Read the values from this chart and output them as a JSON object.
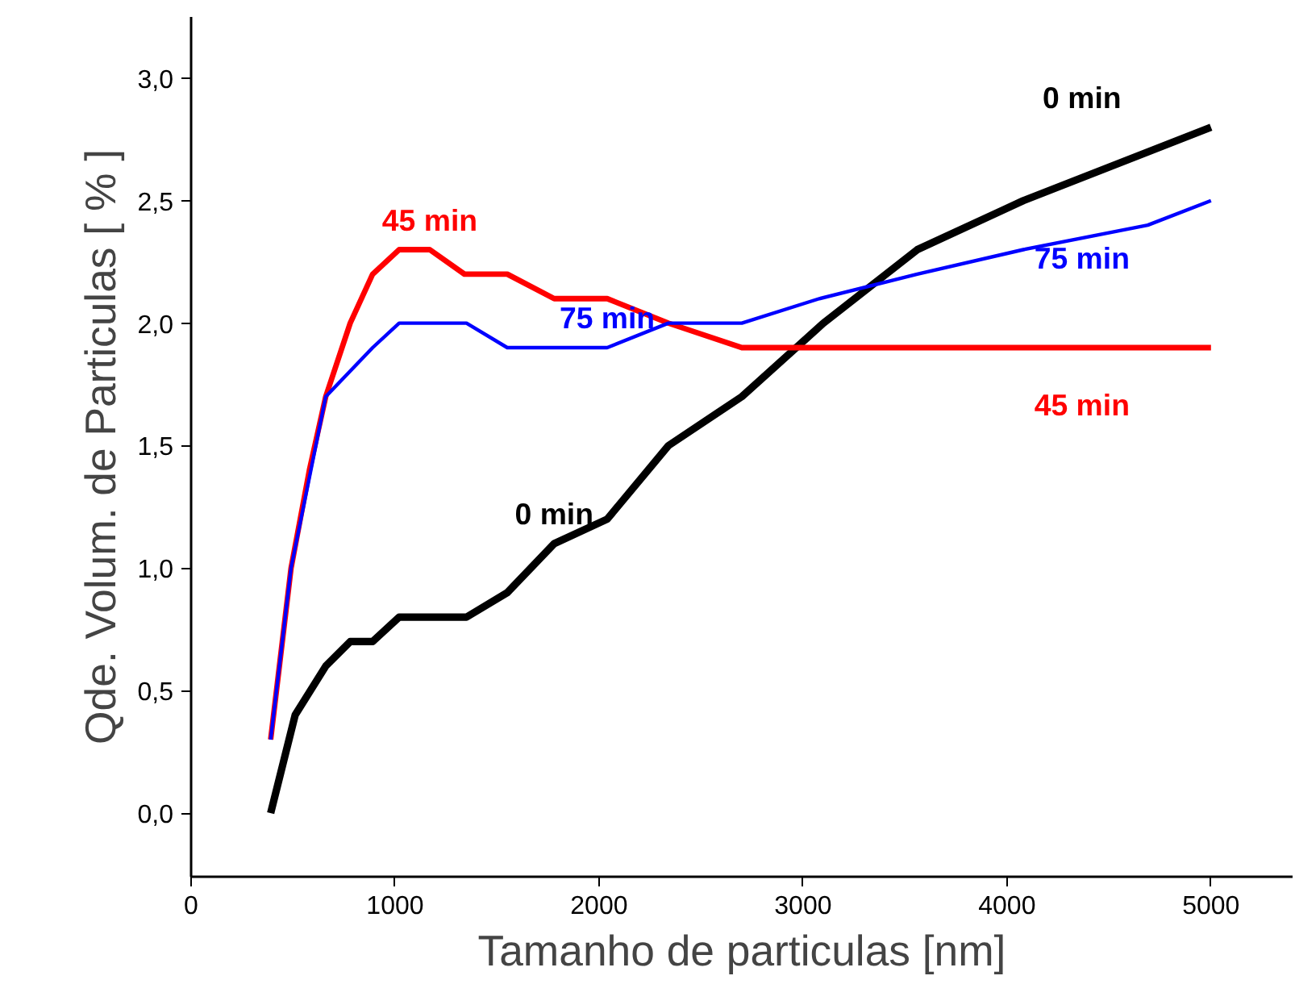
{
  "chart_data": {
    "type": "line",
    "xlabel": "Tamanho de particulas [nm]",
    "ylabel": "Qde. Volum. de Particulas [ % ]",
    "xlim": [
      0,
      5400
    ],
    "ylim": [
      -0.26,
      3.25
    ],
    "xticks": [
      0,
      1000,
      2000,
      3000,
      4000,
      5000
    ],
    "yticks": [
      {
        "value": 0,
        "label": "0,0"
      },
      {
        "value": 0.5,
        "label": "0,5"
      },
      {
        "value": 1,
        "label": "1,0"
      },
      {
        "value": 1.5,
        "label": "1,5"
      },
      {
        "value": 2,
        "label": "2,0"
      },
      {
        "value": 2.5,
        "label": "2,5"
      },
      {
        "value": 3,
        "label": "3,0"
      }
    ],
    "grid": false,
    "legend": false,
    "marker": "none",
    "line_style": "solid",
    "series": [
      {
        "name": "0 min",
        "color": "#000000",
        "x": [
          390,
          510,
          660,
          780,
          890,
          1020,
          1350,
          1550,
          1780,
          2040,
          2340,
          2700,
          3100,
          3560,
          4080,
          5000
        ],
        "values": [
          0,
          0.4,
          0.6,
          0.7,
          0.7,
          0.8,
          0.8,
          0.9,
          1.1,
          1.2,
          1.5,
          1.7,
          2.0,
          2.3,
          2.5,
          2.8
        ]
      },
      {
        "name": "45 min",
        "color": "#ff0000",
        "x": [
          390,
          490,
          580,
          660,
          780,
          890,
          1020,
          1170,
          1340,
          1550,
          1780,
          2040,
          2340,
          2700,
          5000
        ],
        "values": [
          0.3,
          1.0,
          1.4,
          1.7,
          2.0,
          2.2,
          2.3,
          2.3,
          2.2,
          2.2,
          2.1,
          2.1,
          2.0,
          1.9,
          1.9
        ]
      },
      {
        "name": "75 min",
        "color": "#0000ff",
        "x": [
          390,
          490,
          660,
          890,
          1020,
          1350,
          1550,
          2040,
          2340,
          2700,
          3080,
          3560,
          4080,
          4690,
          5000
        ],
        "values": [
          0.3,
          1.0,
          1.7,
          1.9,
          2.0,
          2.0,
          1.9,
          1.9,
          2.0,
          2.0,
          2.1,
          2.2,
          2.3,
          2.4,
          2.5
        ]
      }
    ]
  }
}
